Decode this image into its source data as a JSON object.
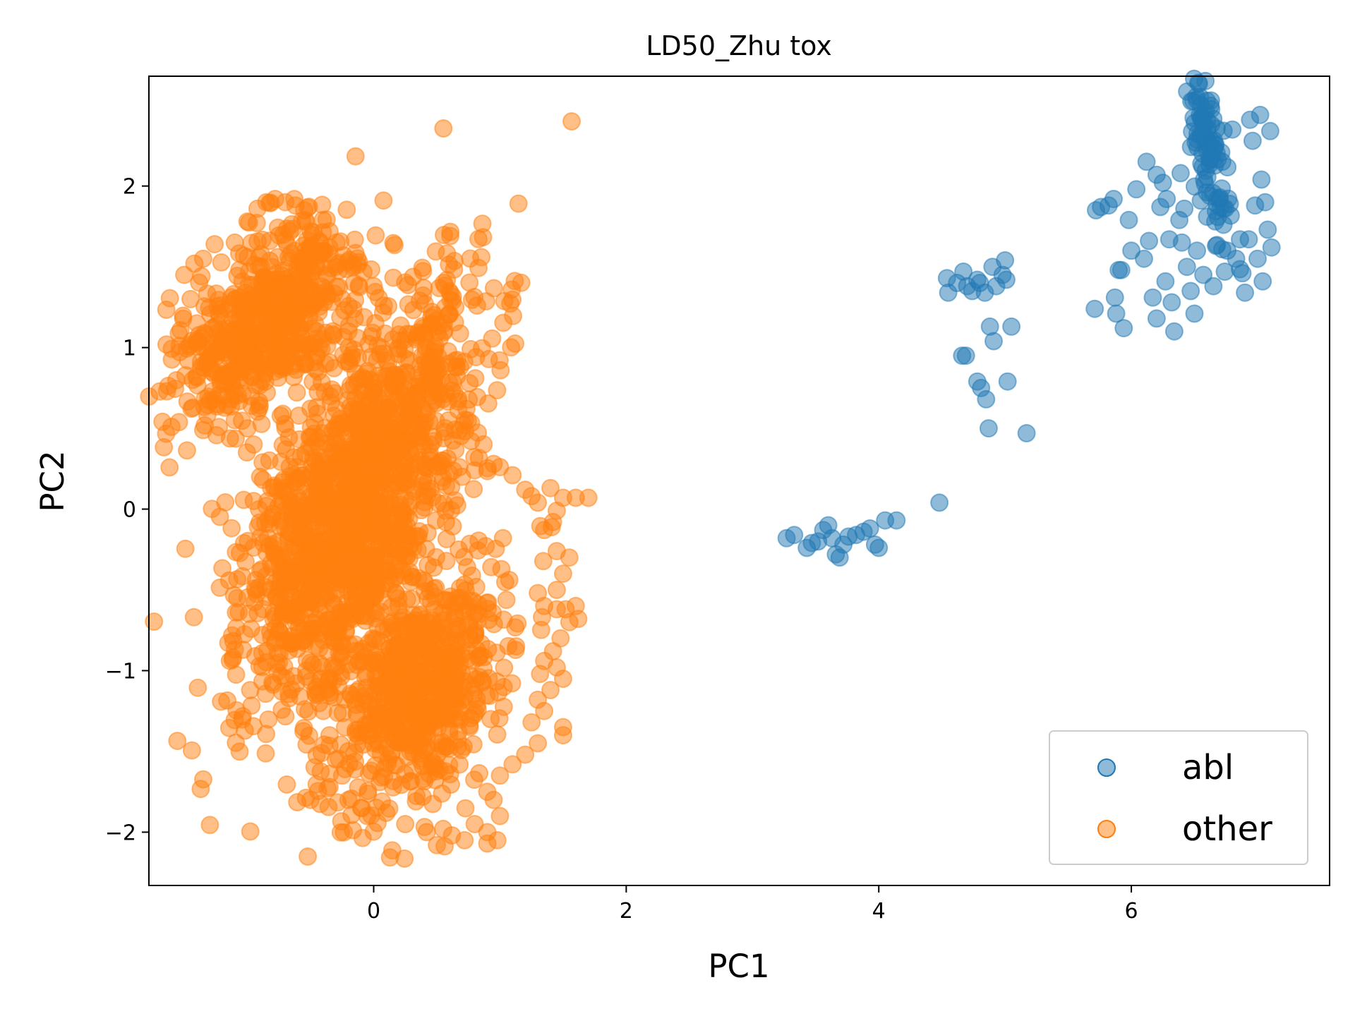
{
  "chart_data": {
    "type": "scatter",
    "title": "LD50_Zhu tox",
    "xlabel": "PC1",
    "ylabel": "PC2",
    "xlim": [
      -1.78,
      7.57
    ],
    "ylim": [
      -2.33,
      2.68
    ],
    "xticks": [
      0,
      2,
      4,
      6
    ],
    "yticks": [
      -2,
      -1,
      0,
      1,
      2
    ],
    "grid": false,
    "legend_position": "lower-right",
    "colors": {
      "abl": "#1f77b4",
      "other": "#ff7f0e"
    },
    "series": [
      {
        "name": "abl",
        "points": [
          [
            3.27,
            -0.18
          ],
          [
            3.33,
            -0.16
          ],
          [
            3.43,
            -0.24
          ],
          [
            3.47,
            -0.21
          ],
          [
            3.52,
            -0.2
          ],
          [
            3.56,
            -0.13
          ],
          [
            3.6,
            -0.1
          ],
          [
            3.63,
            -0.18
          ],
          [
            3.66,
            -0.28
          ],
          [
            3.69,
            -0.3
          ],
          [
            3.72,
            -0.22
          ],
          [
            3.76,
            -0.17
          ],
          [
            3.82,
            -0.16
          ],
          [
            3.88,
            -0.14
          ],
          [
            3.93,
            -0.12
          ],
          [
            3.97,
            -0.22
          ],
          [
            4.0,
            -0.24
          ],
          [
            4.05,
            -0.07
          ],
          [
            4.14,
            -0.07
          ],
          [
            4.48,
            0.04
          ],
          [
            4.54,
            1.43
          ],
          [
            4.55,
            1.34
          ],
          [
            4.62,
            1.4
          ],
          [
            4.67,
            1.47
          ],
          [
            4.7,
            1.38
          ],
          [
            4.74,
            1.35
          ],
          [
            4.78,
            1.42
          ],
          [
            4.8,
            1.4
          ],
          [
            4.84,
            1.34
          ],
          [
            4.9,
            1.5
          ],
          [
            4.93,
            1.38
          ],
          [
            4.98,
            1.45
          ],
          [
            5.0,
            1.54
          ],
          [
            5.01,
            1.42
          ],
          [
            4.66,
            0.95
          ],
          [
            4.69,
            0.95
          ],
          [
            4.78,
            0.79
          ],
          [
            4.81,
            0.75
          ],
          [
            4.85,
            0.68
          ],
          [
            4.88,
            1.13
          ],
          [
            4.91,
            1.04
          ],
          [
            4.87,
            0.5
          ],
          [
            5.02,
            0.79
          ],
          [
            5.05,
            1.13
          ],
          [
            5.17,
            0.47
          ],
          [
            5.71,
            1.24
          ],
          [
            5.72,
            1.85
          ],
          [
            5.76,
            1.87
          ],
          [
            5.82,
            1.88
          ],
          [
            5.86,
            1.92
          ],
          [
            5.87,
            1.31
          ],
          [
            5.88,
            1.21
          ],
          [
            5.9,
            1.48
          ],
          [
            5.92,
            1.48
          ],
          [
            5.94,
            1.12
          ],
          [
            5.98,
            1.79
          ],
          [
            6.0,
            1.6
          ],
          [
            6.04,
            1.98
          ],
          [
            6.1,
            1.55
          ],
          [
            6.14,
            1.66
          ],
          [
            6.17,
            1.31
          ],
          [
            6.2,
            1.18
          ],
          [
            6.23,
            1.87
          ],
          [
            6.25,
            2.02
          ],
          [
            6.27,
            1.41
          ],
          [
            6.3,
            1.67
          ],
          [
            6.32,
            1.28
          ],
          [
            6.34,
            1.1
          ],
          [
            6.38,
            1.79
          ],
          [
            6.39,
            2.08
          ],
          [
            6.4,
            1.65
          ],
          [
            6.42,
            1.86
          ],
          [
            6.44,
            1.5
          ],
          [
            6.47,
            1.35
          ],
          [
            6.5,
            1.21
          ],
          [
            6.52,
            1.6
          ],
          [
            6.55,
            1.91
          ],
          [
            6.57,
            1.45
          ],
          [
            6.6,
            1.81
          ],
          [
            6.62,
            2.26
          ],
          [
            6.65,
            1.38
          ],
          [
            6.67,
            1.63
          ],
          [
            6.7,
            1.93
          ],
          [
            6.72,
            2.15
          ],
          [
            6.74,
            1.47
          ],
          [
            6.76,
            1.6
          ],
          [
            6.78,
            1.89
          ],
          [
            6.8,
            2.35
          ],
          [
            6.83,
            1.55
          ],
          [
            6.86,
            1.67
          ],
          [
            6.88,
            1.46
          ],
          [
            6.9,
            1.34
          ],
          [
            6.93,
            1.67
          ],
          [
            6.96,
            2.28
          ],
          [
            6.98,
            1.88
          ],
          [
            7.0,
            1.55
          ],
          [
            7.03,
            2.04
          ],
          [
            7.04,
            1.41
          ],
          [
            7.06,
            1.9
          ],
          [
            7.08,
            1.73
          ],
          [
            7.1,
            2.34
          ],
          [
            7.11,
            1.62
          ],
          [
            7.02,
            2.44
          ],
          [
            6.94,
            2.41
          ],
          [
            6.12,
            2.15
          ],
          [
            6.2,
            2.07
          ],
          [
            6.28,
            1.92
          ]
        ],
        "clusters": [
          {
            "name": "abl-dense-upper-right",
            "center": [
              6.6,
              2.27
            ],
            "spread": [
              0.24,
              0.06
            ],
            "tilt": 0.2,
            "count": 100
          }
        ]
      },
      {
        "name": "other",
        "points": [
          [
            0.08,
            1.26
          ],
          [
            0.0,
            1.38
          ],
          [
            0.05,
            0.96
          ],
          [
            0.1,
            0.92
          ],
          [
            0.15,
            0.78
          ],
          [
            0.2,
            0.62
          ],
          [
            0.26,
            0.52
          ],
          [
            0.31,
            0.46
          ],
          [
            0.36,
            0.45
          ],
          [
            0.33,
            0.28
          ],
          [
            0.45,
            0.4
          ],
          [
            0.55,
            0.3
          ],
          [
            0.6,
            0.22
          ],
          [
            0.7,
            0.2
          ],
          [
            0.8,
            0.24
          ],
          [
            0.95,
            0.28
          ],
          [
            1.0,
            0.26
          ],
          [
            1.1,
            0.21
          ],
          [
            1.2,
            0.12
          ],
          [
            1.25,
            0.08
          ],
          [
            1.3,
            0.04
          ],
          [
            1.4,
            0.13
          ],
          [
            1.45,
            -0.01
          ],
          [
            1.5,
            0.07
          ],
          [
            1.6,
            0.07
          ],
          [
            1.7,
            0.07
          ],
          [
            1.42,
            -0.08
          ],
          [
            1.35,
            -0.13
          ],
          [
            1.45,
            -0.26
          ],
          [
            1.55,
            -0.3
          ],
          [
            1.5,
            -0.4
          ],
          [
            1.45,
            -0.5
          ],
          [
            1.3,
            -0.52
          ],
          [
            1.35,
            -0.6
          ],
          [
            1.45,
            -0.62
          ],
          [
            1.52,
            -0.62
          ],
          [
            1.6,
            -0.6
          ],
          [
            1.62,
            -0.68
          ],
          [
            1.55,
            -0.7
          ],
          [
            1.48,
            -0.8
          ],
          [
            1.42,
            -0.88
          ],
          [
            1.35,
            -0.94
          ],
          [
            1.45,
            -0.98
          ],
          [
            1.5,
            -1.05
          ],
          [
            1.4,
            -1.12
          ],
          [
            1.3,
            -1.18
          ],
          [
            1.35,
            -1.25
          ],
          [
            1.25,
            -1.32
          ],
          [
            1.5,
            -1.35
          ],
          [
            1.5,
            -1.4
          ],
          [
            1.3,
            -1.45
          ],
          [
            1.2,
            -1.52
          ],
          [
            1.1,
            -1.58
          ],
          [
            1.0,
            -1.65
          ],
          [
            0.9,
            -1.75
          ],
          [
            0.95,
            -1.8
          ],
          [
            1.0,
            -1.9
          ],
          [
            0.9,
            -2.0
          ],
          [
            0.8,
            -1.95
          ],
          [
            0.72,
            -2.05
          ],
          [
            0.62,
            -2.02
          ],
          [
            0.55,
            -1.98
          ],
          [
            0.5,
            -2.08
          ],
          [
            0.9,
            -2.07
          ],
          [
            0.98,
            -2.05
          ],
          [
            0.42,
            -2.0
          ],
          [
            0.25,
            -1.95
          ],
          [
            0.1,
            -1.88
          ],
          [
            -0.05,
            -1.9
          ],
          [
            -0.1,
            -1.85
          ],
          [
            -0.2,
            -1.8
          ],
          [
            -0.5,
            -1.8
          ],
          [
            -0.35,
            -1.72
          ],
          [
            -1.5,
            1.45
          ],
          [
            -1.42,
            1.52
          ],
          [
            -1.35,
            1.55
          ],
          [
            -1.45,
            1.3
          ],
          [
            -1.4,
            1.15
          ],
          [
            -1.35,
            1.0
          ],
          [
            -1.28,
            0.85
          ],
          [
            -1.2,
            0.7
          ],
          [
            -1.1,
            0.55
          ],
          [
            -1.0,
            0.5
          ],
          [
            -0.95,
            0.4
          ],
          [
            -0.9,
            0.2
          ],
          [
            -0.95,
            0.05
          ],
          [
            -0.85,
            0.02
          ],
          [
            -0.8,
            -0.05
          ],
          [
            -0.75,
            -0.2
          ],
          [
            -0.7,
            -0.3
          ],
          [
            -0.65,
            -0.45
          ],
          [
            -0.6,
            -0.6
          ],
          [
            -0.55,
            -0.75
          ],
          [
            -0.5,
            -0.95
          ],
          [
            -0.45,
            -1.1
          ],
          [
            -0.4,
            -1.25
          ],
          [
            -0.35,
            -1.4
          ],
          [
            -0.3,
            -1.55
          ],
          [
            -0.25,
            -1.65
          ],
          [
            -1.1,
            1.65
          ],
          [
            -1.0,
            1.78
          ],
          [
            -0.92,
            1.86
          ],
          [
            -0.85,
            1.9
          ],
          [
            -0.78,
            1.92
          ],
          [
            -0.7,
            1.9
          ],
          [
            -0.62,
            1.88
          ],
          [
            -0.55,
            1.85
          ],
          [
            -0.5,
            1.72
          ],
          [
            -0.35,
            1.72
          ],
          [
            -0.4,
            1.6
          ],
          [
            -0.3,
            1.5
          ],
          [
            -0.25,
            1.3
          ],
          [
            -0.2,
            1.1
          ],
          [
            -0.15,
            1.18
          ]
        ],
        "clusters": [
          {
            "name": "other-dense-main",
            "center": [
              -0.15,
              0.05
            ],
            "spread": [
              0.32,
              0.72
            ],
            "tilt": -2.15,
            "count": 1500
          },
          {
            "name": "other-dense-upper",
            "center": [
              -0.85,
              1.15
            ],
            "spread": [
              0.22,
              0.4
            ],
            "tilt": -2.5,
            "count": 600
          },
          {
            "name": "other-dense-lower",
            "center": [
              0.35,
              -1.1
            ],
            "spread": [
              0.28,
              0.45
            ],
            "tilt": -2.3,
            "count": 700
          }
        ]
      }
    ]
  }
}
